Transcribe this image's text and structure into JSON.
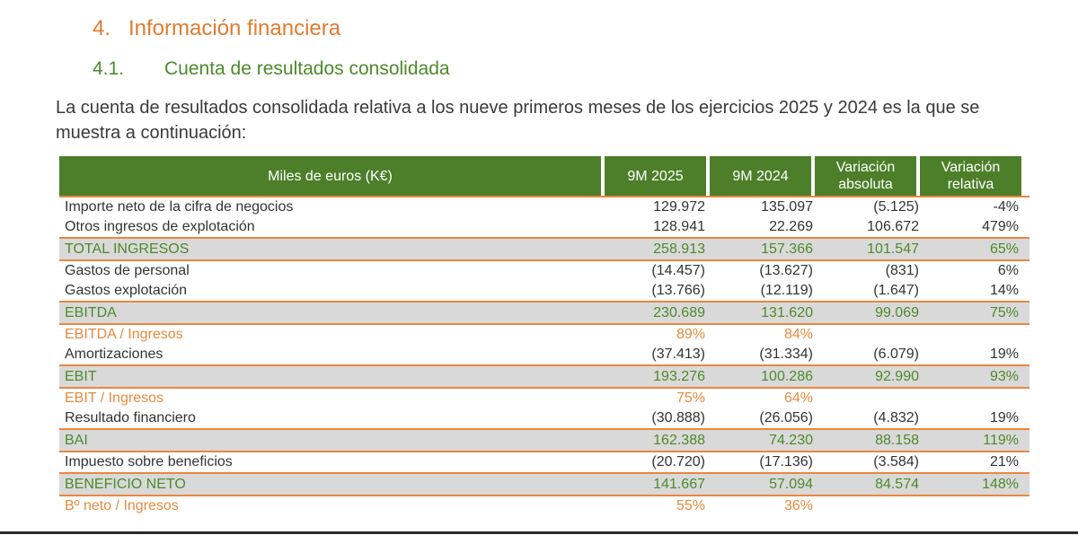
{
  "heading": {
    "number": "4.",
    "title": "Información financiera"
  },
  "subheading": {
    "number": "4.1.",
    "title": "Cuenta de resultados consolidada"
  },
  "paragraph": "La cuenta de resultados consolidada relativa a los nueve primeros meses de los ejercicios 2025 y 2024 es la que se muestra a continuación:",
  "table": {
    "headers": {
      "label": "Miles de euros (K€)",
      "col1": "9M 2025",
      "col2": "9M 2024",
      "col3_line1": "Variación",
      "col3_line2": "absoluta",
      "col4_line1": "Variación",
      "col4_line2": "relativa"
    },
    "rows": [
      {
        "label": "Importe neto de la cifra de negocios",
        "v2025": "129.972",
        "v2024": "135.097",
        "abs": "(5.125)",
        "rel": "-4%"
      },
      {
        "label": "Otros ingresos de explotación",
        "v2025": "128.941",
        "v2024": "22.269",
        "abs": "106.672",
        "rel": "479%"
      },
      {
        "label": "TOTAL INGRESOS",
        "v2025": "258.913",
        "v2024": "157.366",
        "abs": "101.547",
        "rel": "65%"
      },
      {
        "label": "Gastos de personal",
        "v2025": "(14.457)",
        "v2024": "(13.627)",
        "abs": "(831)",
        "rel": "6%"
      },
      {
        "label": "Gastos explotación",
        "v2025": "(13.766)",
        "v2024": "(12.119)",
        "abs": "(1.647)",
        "rel": "14%"
      },
      {
        "label": "EBITDA",
        "v2025": "230.689",
        "v2024": "131.620",
        "abs": "99.069",
        "rel": "75%"
      },
      {
        "label": "EBITDA / Ingresos",
        "v2025": "89%",
        "v2024": "84%",
        "abs": "",
        "rel": ""
      },
      {
        "label": "Amortizaciones",
        "v2025": "(37.413)",
        "v2024": "(31.334)",
        "abs": "(6.079)",
        "rel": "19%"
      },
      {
        "label": "EBIT",
        "v2025": "193.276",
        "v2024": "100.286",
        "abs": "92.990",
        "rel": "93%"
      },
      {
        "label": "EBIT / Ingresos",
        "v2025": "75%",
        "v2024": "64%",
        "abs": "",
        "rel": ""
      },
      {
        "label": "Resultado financiero",
        "v2025": "(30.888)",
        "v2024": "(26.056)",
        "abs": "(4.832)",
        "rel": "19%"
      },
      {
        "label": "BAI",
        "v2025": "162.388",
        "v2024": "74.230",
        "abs": "88.158",
        "rel": "119%"
      },
      {
        "label": "Impuesto sobre beneficios",
        "v2025": "(20.720)",
        "v2024": "(17.136)",
        "abs": "(3.584)",
        "rel": "21%"
      },
      {
        "label": "BENEFICIO NETO",
        "v2025": "141.667",
        "v2024": "57.094",
        "abs": "84.574",
        "rel": "148%"
      },
      {
        "label": "Bº neto / Ingresos",
        "v2025": "55%",
        "v2024": "36%",
        "abs": "",
        "rel": ""
      }
    ]
  }
}
